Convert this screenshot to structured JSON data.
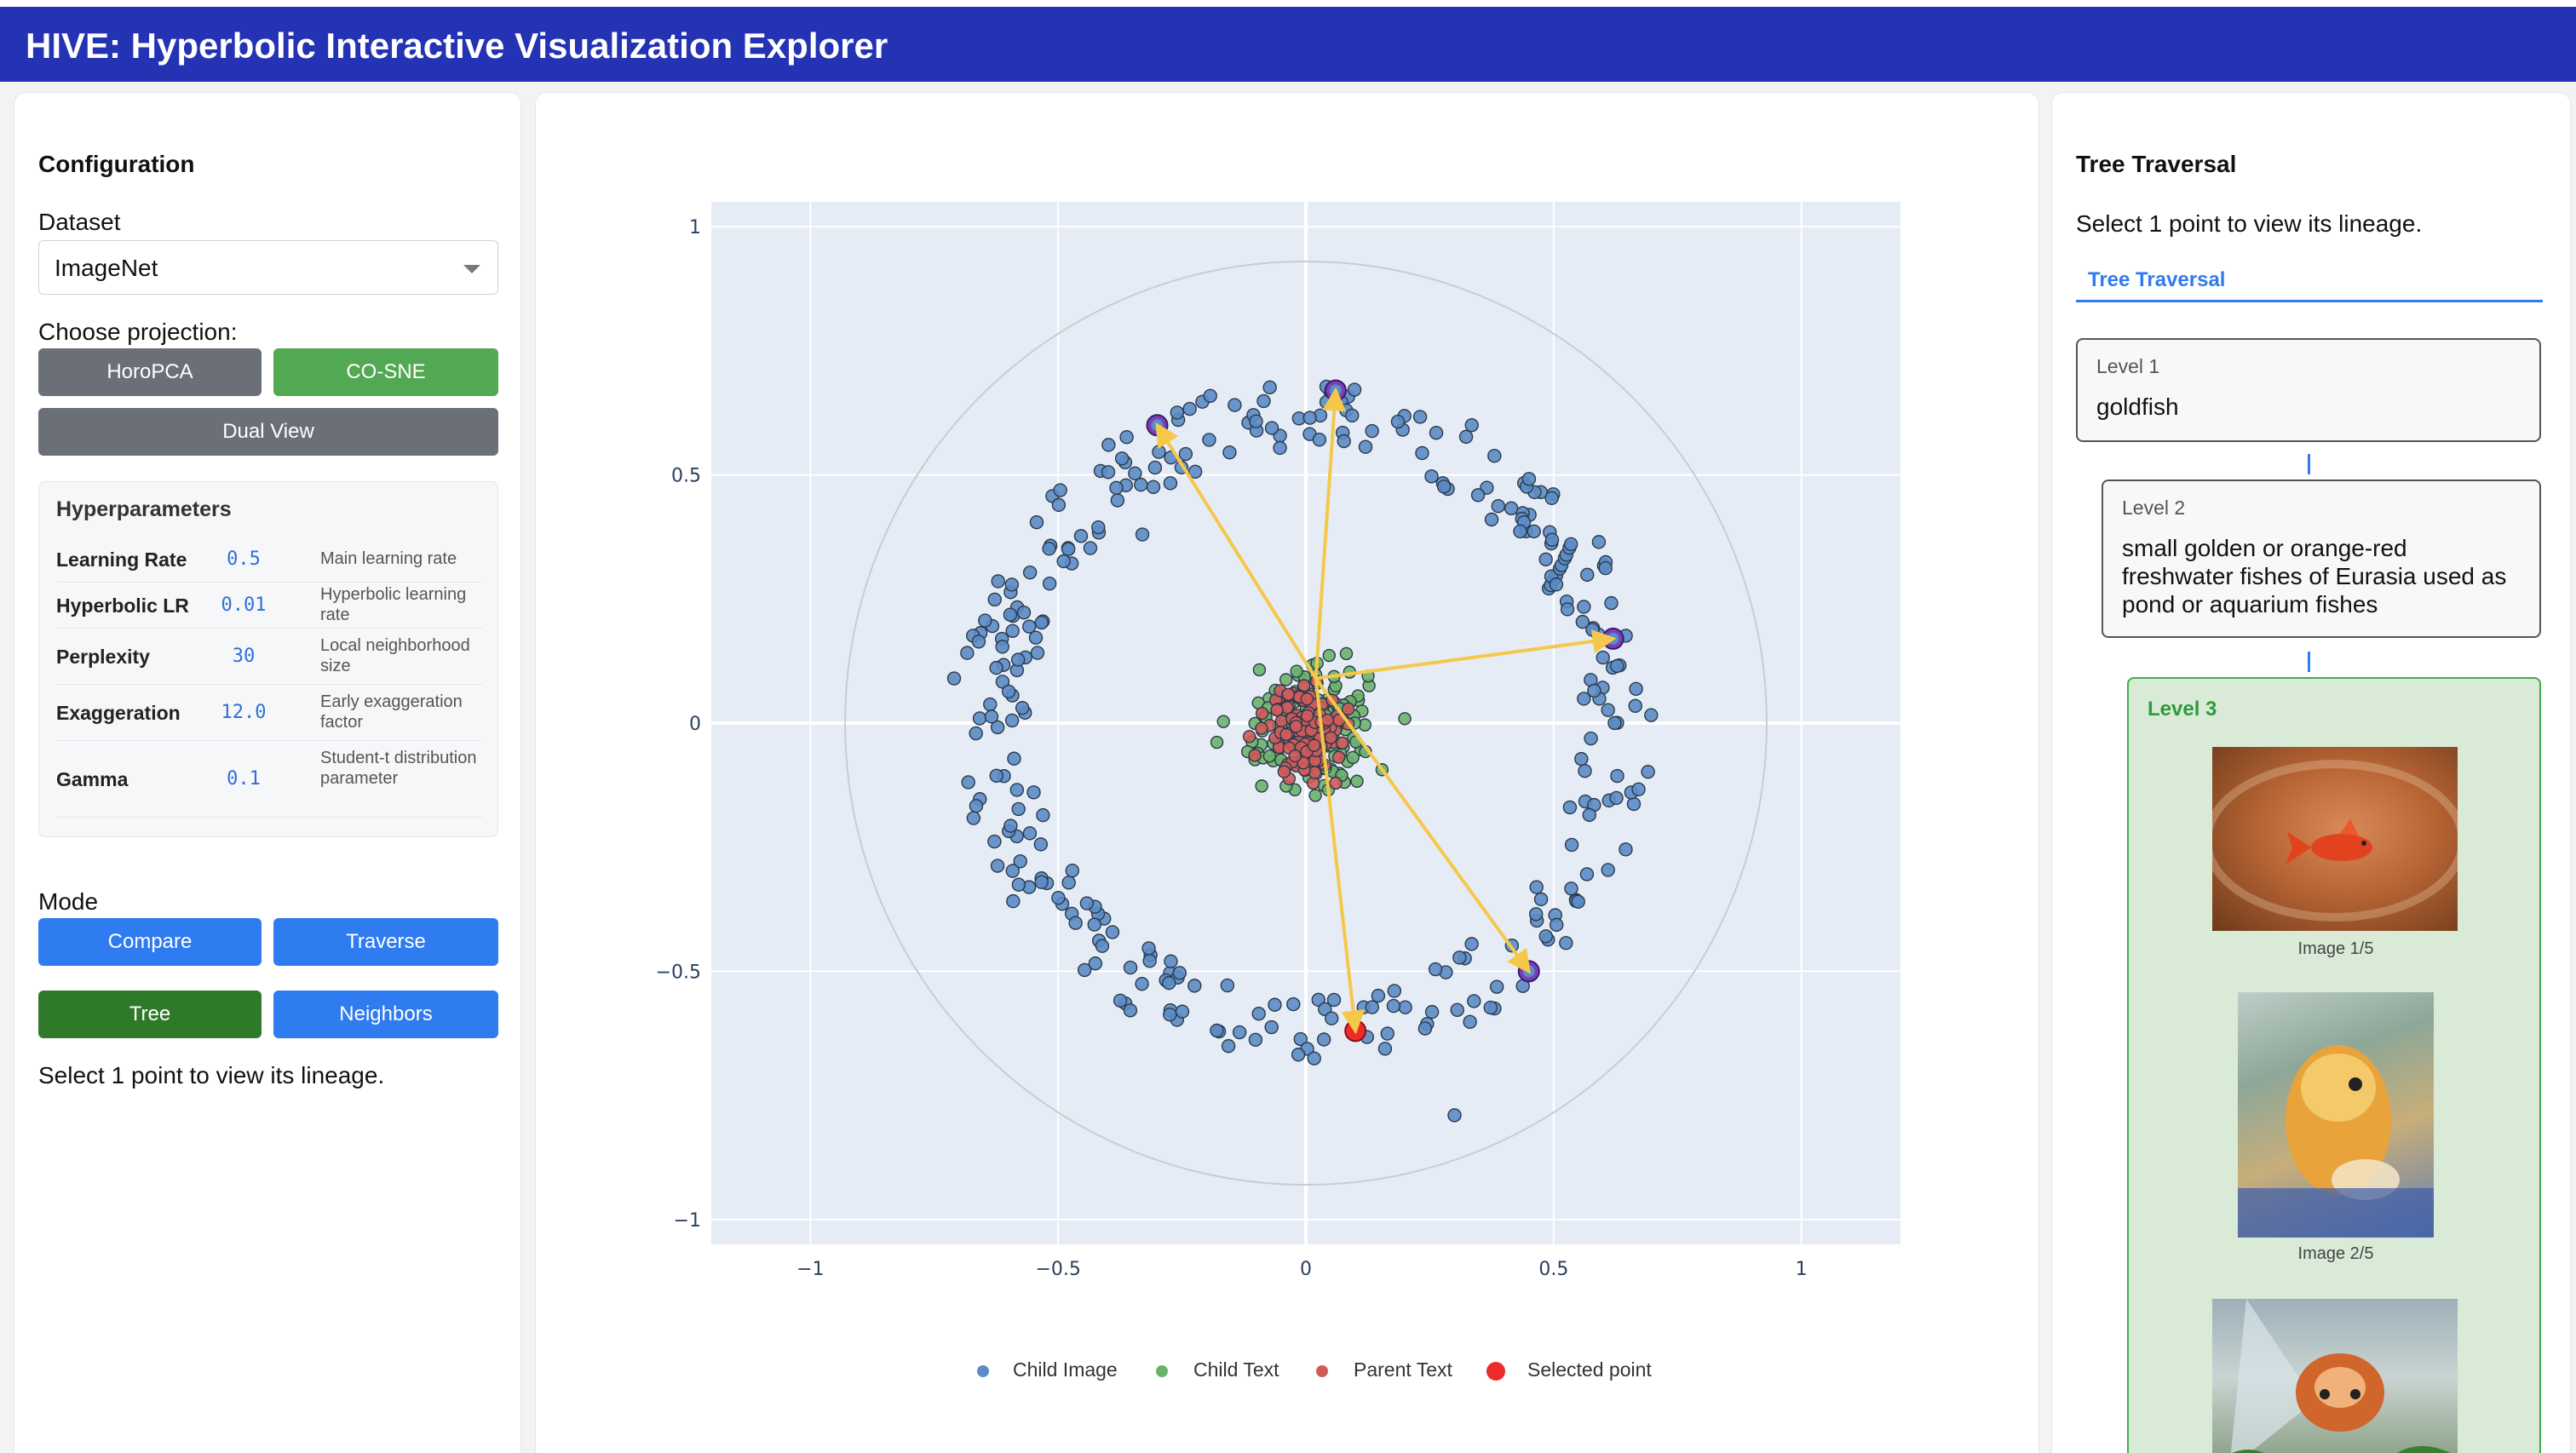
{
  "app": {
    "title": "HIVE: Hyperbolic Interactive Visualization Explorer"
  },
  "config": {
    "heading": "Configuration",
    "dataset_label": "Dataset",
    "dataset_value": "ImageNet",
    "projection_label": "Choose projection:",
    "buttons": {
      "horopca": "HoroPCA",
      "cosne": "CO-SNE",
      "dual": "Dual View"
    },
    "hyper_title": "Hyperparameters",
    "hyperparams": [
      {
        "name": "Learning Rate",
        "value": "0.5",
        "desc": "Main learning rate"
      },
      {
        "name": "Hyperbolic LR",
        "value": "0.01",
        "desc": "Hyperbolic learning rate"
      },
      {
        "name": "Perplexity",
        "value": "30",
        "desc": "Local neighborhood size"
      },
      {
        "name": "Exaggeration",
        "value": "12.0",
        "desc": "Early exaggeration factor"
      },
      {
        "name": "Gamma",
        "value": "0.1",
        "desc": "Student-t distribution parameter"
      }
    ],
    "mode_label": "Mode",
    "mode_buttons": {
      "compare": "Compare",
      "traverse": "Traverse",
      "tree": "Tree",
      "neighbors": "Neighbors"
    },
    "hint": "Select 1 point to view its lineage."
  },
  "toolbar_icons": [
    "pan-icon",
    "zoom-icon",
    "zoom-in-icon",
    "zoom-out-icon",
    "autoscale-icon",
    "home-icon",
    "camera-icon"
  ],
  "chart_data": {
    "type": "scatter",
    "xlim": [
      -1.2,
      1.2
    ],
    "ylim": [
      -1.05,
      1.05
    ],
    "xticks": [
      -1,
      -0.5,
      0,
      0.5,
      1
    ],
    "yticks": [
      -1,
      -0.5,
      0,
      0.5,
      1
    ],
    "xtick_labels": [
      "−1",
      "−0.5",
      "0",
      "0.5",
      "1"
    ],
    "ytick_labels": [
      "−1",
      "−0.5",
      "0",
      "0.5",
      "1"
    ],
    "grid": true,
    "boundary_circle_radius": 0.93,
    "legend_placement": "bottom-center",
    "series": [
      {
        "name": "Child Image",
        "color": "#5b8cc7",
        "ring_radius": [
          0.56,
          0.7
        ],
        "count": 320,
        "outliers": [
          [
            0.3,
            -0.79
          ],
          [
            -0.71,
            0.09
          ],
          [
            -0.33,
            0.38
          ]
        ]
      },
      {
        "name": "Child Text",
        "color": "#6bb26b",
        "center": [
          0.01,
          -0.01
        ],
        "spread": 0.12,
        "count": 170
      },
      {
        "name": "Parent Text",
        "color": "#cf5b5b",
        "center": [
          0.0,
          -0.02
        ],
        "spread": 0.07,
        "count": 150
      },
      {
        "name": "Selected point",
        "color": "#ee2b2b",
        "points": [
          [
            0.1,
            -0.62
          ]
        ]
      }
    ],
    "highlighted": [
      [
        -0.3,
        0.6
      ],
      [
        0.06,
        0.67
      ],
      [
        0.62,
        0.17
      ],
      [
        0.45,
        -0.5
      ]
    ],
    "arrow_origin": [
      0.02,
      0.09
    ],
    "arrows": [
      {
        "from": [
          0.02,
          0.09
        ],
        "to": [
          -0.3,
          0.6
        ]
      },
      {
        "from": [
          0.02,
          0.09
        ],
        "to": [
          0.06,
          0.67
        ]
      },
      {
        "from": [
          0.02,
          0.09
        ],
        "to": [
          0.62,
          0.17
        ]
      },
      {
        "from": [
          0.02,
          0.09
        ],
        "to": [
          0.45,
          -0.5
        ]
      },
      {
        "from": [
          0.02,
          0.09
        ],
        "to": [
          0.1,
          -0.62
        ]
      }
    ],
    "arrow_color": "#f5c84a"
  },
  "tree": {
    "heading": "Tree Traversal",
    "hint": "Select 1 point to view its lineage.",
    "tab": "Tree Traversal",
    "level1": {
      "title": "Level 1",
      "text": "goldfish"
    },
    "level2": {
      "title": "Level 2",
      "lines": [
        "small golden or orange-red",
        "freshwater fishes of Eurasia used as",
        "pond or aquarium fishes"
      ]
    },
    "level3": {
      "title": "Level 3",
      "captions": [
        "Image 1/5",
        "Image 2/5"
      ]
    }
  }
}
